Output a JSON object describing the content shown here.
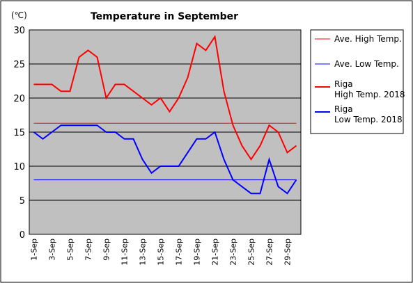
{
  "chart_data": {
    "type": "line",
    "title": "Temperature in September",
    "unit_label": "(℃)",
    "xlabel": "",
    "ylabel": "",
    "ylim": [
      0,
      30
    ],
    "y_ticks": [
      0,
      5,
      10,
      15,
      20,
      25,
      30
    ],
    "grid": "horizontal",
    "plot_background": "#c0c0c0",
    "legend_position": "right",
    "categories": [
      "1-Sep",
      "2-Sep",
      "3-Sep",
      "4-Sep",
      "5-Sep",
      "6-Sep",
      "7-Sep",
      "8-Sep",
      "9-Sep",
      "10-Sep",
      "11-Sep",
      "12-Sep",
      "13-Sep",
      "14-Sep",
      "15-Sep",
      "16-Sep",
      "17-Sep",
      "18-Sep",
      "19-Sep",
      "20-Sep",
      "21-Sep",
      "22-Sep",
      "23-Sep",
      "24-Sep",
      "25-Sep",
      "26-Sep",
      "27-Sep",
      "28-Sep",
      "29-Sep",
      "30-Sep"
    ],
    "tick_labels": [
      "1-Sep",
      "3-Sep",
      "5-Sep",
      "7-Sep",
      "9-Sep",
      "11-Sep",
      "13-Sep",
      "15-Sep",
      "17-Sep",
      "19-Sep",
      "21-Sep",
      "23-Sep",
      "25-Sep",
      "27-Sep",
      "29-Sep"
    ],
    "series": [
      {
        "name": "Ave. High Temp.",
        "legend_lines": [
          "Ave. High Temp."
        ],
        "color": "#ff0000",
        "thin": true,
        "values": [
          16.3,
          16.3,
          16.3,
          16.3,
          16.3,
          16.3,
          16.3,
          16.3,
          16.3,
          16.3,
          16.3,
          16.3,
          16.3,
          16.3,
          16.3,
          16.3,
          16.3,
          16.3,
          16.3,
          16.3,
          16.3,
          16.3,
          16.3,
          16.3,
          16.3,
          16.3,
          16.3,
          16.3,
          16.3,
          16.3
        ]
      },
      {
        "name": "Ave. Low Temp.",
        "legend_lines": [
          "Ave. Low Temp."
        ],
        "color": "#0000ff",
        "thin": true,
        "values": [
          8,
          8,
          8,
          8,
          8,
          8,
          8,
          8,
          8,
          8,
          8,
          8,
          8,
          8,
          8,
          8,
          8,
          8,
          8,
          8,
          8,
          8,
          8,
          8,
          8,
          8,
          8,
          8,
          8,
          8
        ]
      },
      {
        "name": "Riga High Temp. 2018",
        "legend_lines": [
          "Riga",
          "High Temp. 2018"
        ],
        "color": "#ff0000",
        "thin": false,
        "values": [
          22,
          22,
          22,
          21,
          21,
          26,
          27,
          26,
          20,
          22,
          22,
          21,
          20,
          19,
          20,
          18,
          20,
          23,
          28,
          27,
          29,
          21,
          16,
          13,
          11,
          13,
          16,
          15,
          12,
          13
        ]
      },
      {
        "name": "Riga Low Temp. 2018",
        "legend_lines": [
          "Riga",
          "Low Temp. 2018"
        ],
        "color": "#0000ff",
        "thin": false,
        "values": [
          15,
          14,
          15,
          16,
          16,
          16,
          16,
          16,
          15,
          15,
          14,
          14,
          11,
          9,
          10,
          10,
          10,
          12,
          14,
          14,
          15,
          11,
          8,
          7,
          6,
          6,
          11,
          7,
          6,
          8
        ]
      }
    ]
  }
}
